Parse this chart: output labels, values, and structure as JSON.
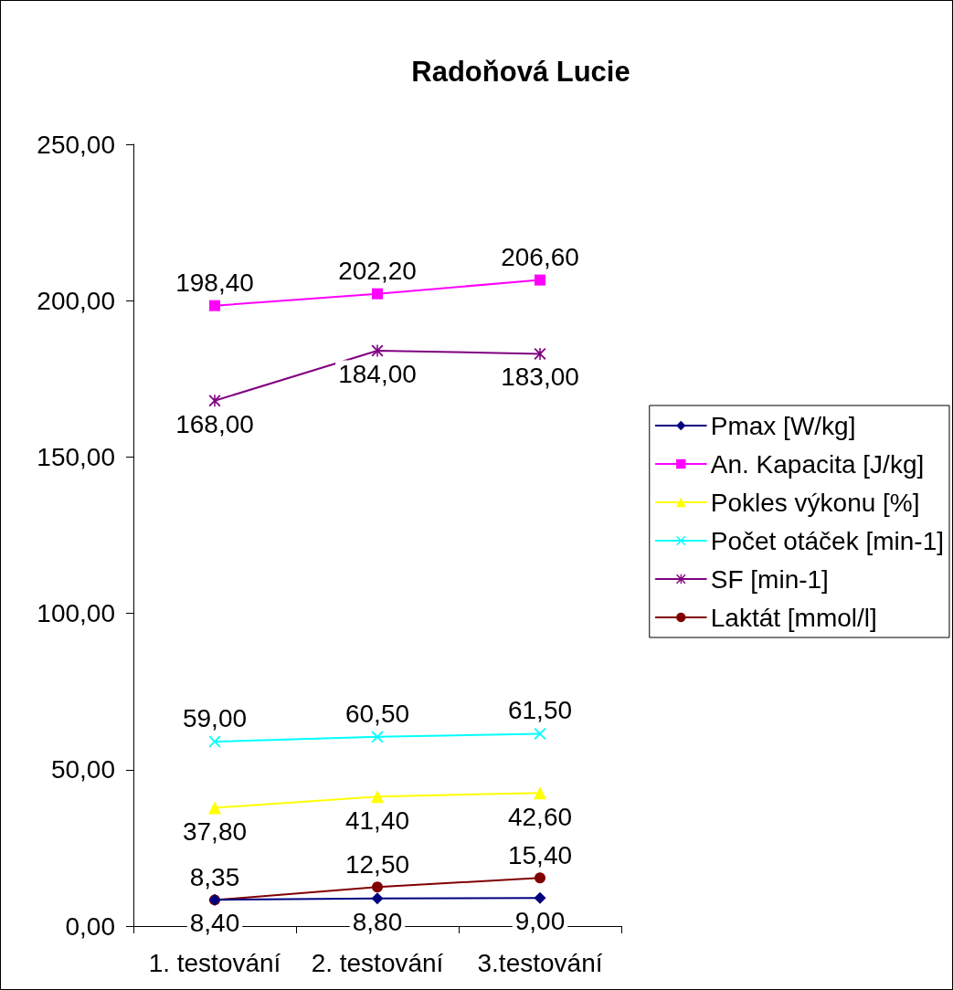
{
  "chart_data": {
    "type": "line",
    "title": "Radoňová Lucie",
    "categories": [
      "1. testování",
      "2. testování",
      "3.testování"
    ],
    "series": [
      {
        "name": "Pmax [W/kg]",
        "color": "#000080",
        "marker": "diamond",
        "values": [
          8.4,
          8.8,
          9.0
        ],
        "value_labels": [
          "8,40",
          "8,80",
          "9,00"
        ]
      },
      {
        "name": "An. Kapacita [J/kg]",
        "color": "#ff00ff",
        "marker": "square",
        "values": [
          198.4,
          202.2,
          206.6
        ],
        "value_labels": [
          "198,40",
          "202,20",
          "206,60"
        ]
      },
      {
        "name": "Pokles výkonu [%]",
        "color": "#ffff00",
        "marker": "triangle",
        "values": [
          37.8,
          41.4,
          42.6
        ],
        "value_labels": [
          "37,80",
          "41,40",
          "42,60"
        ]
      },
      {
        "name": "Počet otáček [min-1]",
        "color": "#00ffff",
        "marker": "cross",
        "values": [
          59.0,
          60.5,
          61.5
        ],
        "value_labels": [
          "59,00",
          "60,50",
          "61,50"
        ]
      },
      {
        "name": "SF [min-1]",
        "color": "#800080",
        "marker": "star",
        "values": [
          168.0,
          184.0,
          183.0
        ],
        "value_labels": [
          "168,00",
          "184,00",
          "183,00"
        ]
      },
      {
        "name": "Laktát [mmol/l]",
        "color": "#800000",
        "marker": "circle",
        "values": [
          8.35,
          12.5,
          15.4
        ],
        "value_labels": [
          "8,35",
          "12,50",
          "15,40"
        ]
      }
    ],
    "ylim": [
      0,
      250
    ],
    "yticks": [
      {
        "value": 0,
        "label": "0,00"
      },
      {
        "value": 50,
        "label": "50,00"
      },
      {
        "value": 100,
        "label": "100,00"
      },
      {
        "value": 150,
        "label": "150,00"
      },
      {
        "value": 200,
        "label": "200,00"
      },
      {
        "value": 250,
        "label": "250,00"
      }
    ],
    "legend": "right"
  }
}
